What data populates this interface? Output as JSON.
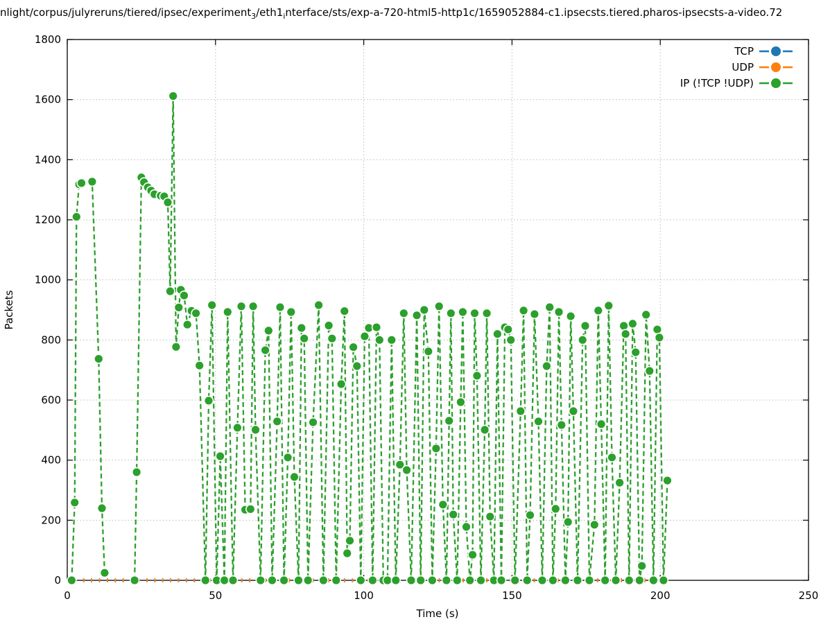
{
  "figure": {
    "title_plain": "nlight/corpus/julyreruns/tiered/ipsec/experiment₃/eth1ᵢnterface/sts/exp-a-720-html5-http1c/1659052884-c1.ipsecsts.tiered.pharos-ipsecsts-a-video.72",
    "title_segments": [
      {
        "text": "nlight/corpus/julyreruns/tiered/ipsec/experiment"
      },
      {
        "text": "3",
        "subscript": true
      },
      {
        "text": "/eth1"
      },
      {
        "text": "i",
        "subscript": true
      },
      {
        "text": "nterface/sts/exp-a-720-html5-http1c/1659052884-c1.ipsecsts.tiered.pharos-ipsecsts-a-video.72"
      }
    ]
  },
  "chart_data": {
    "type": "line",
    "title": "nlight/corpus/julyreruns/tiered/ipsec/experiment₃/eth1ᵢnterface/sts/exp-a-720-html5-http1c/1659052884-c1.ipsecsts.tiered.pharos-ipsecsts-a-video.72",
    "xlabel": "Time (s)",
    "ylabel": "Packets",
    "xlim": [
      0,
      250
    ],
    "ylim": [
      0,
      1800
    ],
    "xticks": [
      0,
      50,
      100,
      150,
      200,
      250
    ],
    "yticks": [
      0,
      200,
      400,
      600,
      800,
      1000,
      1200,
      1400,
      1600,
      1800
    ],
    "grid": true,
    "grid_style": "dotted",
    "legend_position": "top-right",
    "series": [
      {
        "name": "TCP",
        "color": "#1f77b4",
        "linestyle": "dashed",
        "marker": "circle",
        "style": "tick-dashes",
        "points": [
          [
            0,
            0
          ],
          [
            202.6,
            0
          ]
        ]
      },
      {
        "name": "UDP",
        "color": "#ff7f0e",
        "linestyle": "dashed",
        "marker": "circle",
        "style": "tick-dashes",
        "points": [
          [
            0,
            0
          ],
          [
            202.6,
            0
          ]
        ]
      },
      {
        "name": "IP (!TCP  !UDP)",
        "color": "#2ca02c",
        "linestyle": "dashed",
        "marker": "circle",
        "style": "line-markers",
        "points": [
          [
            1.5,
            0
          ],
          [
            2.5,
            259
          ],
          [
            3.1,
            1210
          ],
          [
            4.0,
            1318
          ],
          [
            4.8,
            1322
          ],
          [
            8.4,
            1327
          ],
          [
            10.6,
            737
          ],
          [
            11.7,
            240
          ],
          [
            12.6,
            25
          ],
          null,
          [
            22.7,
            0
          ],
          [
            23.4,
            360
          ],
          [
            25.0,
            1341
          ],
          [
            25.9,
            1325
          ],
          [
            27.2,
            1308
          ],
          [
            28.3,
            1297
          ],
          [
            29.4,
            1285
          ],
          [
            31.5,
            1280
          ],
          [
            32.7,
            1278
          ],
          [
            33.9,
            1258
          ],
          [
            34.7,
            962
          ],
          [
            35.7,
            1612
          ],
          [
            36.7,
            777
          ],
          [
            37.6,
            908
          ],
          [
            38.3,
            967
          ],
          [
            39.4,
            948
          ],
          [
            40.5,
            851
          ],
          [
            41.9,
            897
          ],
          [
            43.4,
            889
          ],
          [
            44.6,
            715
          ],
          [
            46.6,
            0
          ],
          [
            47.7,
            598
          ],
          [
            48.8,
            916
          ],
          [
            50.4,
            0
          ],
          [
            51.6,
            413
          ],
          [
            53.0,
            0
          ],
          [
            54.1,
            893
          ],
          [
            55.9,
            0
          ],
          [
            57.4,
            508
          ],
          [
            58.7,
            912
          ],
          [
            60.0,
            235
          ],
          [
            61.8,
            237
          ],
          [
            62.7,
            912
          ],
          [
            63.5,
            501
          ],
          [
            65.2,
            0
          ],
          [
            66.8,
            766
          ],
          [
            67.9,
            831
          ],
          [
            69.1,
            0
          ],
          [
            70.8,
            529
          ],
          [
            71.8,
            909
          ],
          [
            73.1,
            0
          ],
          [
            74.4,
            409
          ],
          [
            75.5,
            893
          ],
          [
            76.6,
            344
          ],
          [
            78.0,
            0
          ],
          [
            79.0,
            840
          ],
          [
            79.9,
            805
          ],
          [
            81.2,
            0
          ],
          [
            82.9,
            526
          ],
          [
            84.8,
            916
          ],
          [
            86.4,
            0
          ],
          [
            88.2,
            848
          ],
          [
            89.3,
            805
          ],
          [
            90.7,
            0
          ],
          [
            92.4,
            653
          ],
          [
            93.5,
            896
          ],
          [
            94.4,
            90
          ],
          [
            95.3,
            132
          ],
          [
            96.5,
            776
          ],
          [
            97.7,
            713
          ],
          [
            99.0,
            0
          ],
          [
            100.3,
            812
          ],
          [
            101.7,
            840
          ],
          [
            103.0,
            0
          ],
          [
            104.3,
            842
          ],
          [
            105.3,
            800
          ],
          [
            106.6,
            0
          ],
          [
            108.0,
            0
          ],
          [
            109.4,
            800
          ],
          [
            110.8,
            0
          ],
          [
            112.2,
            385
          ],
          [
            113.5,
            889
          ],
          [
            114.5,
            367
          ],
          [
            116.0,
            0
          ],
          [
            117.9,
            882
          ],
          [
            119.2,
            0
          ],
          [
            120.4,
            900
          ],
          [
            121.8,
            762
          ],
          [
            123.1,
            0
          ],
          [
            124.4,
            439
          ],
          [
            125.4,
            912
          ],
          [
            126.7,
            252
          ],
          [
            127.9,
            0
          ],
          [
            128.8,
            531
          ],
          [
            129.4,
            889
          ],
          [
            130.2,
            219
          ],
          [
            131.5,
            0
          ],
          [
            132.7,
            593
          ],
          [
            133.4,
            893
          ],
          [
            134.6,
            178
          ],
          [
            135.8,
            0
          ],
          [
            136.7,
            85
          ],
          [
            137.4,
            889
          ],
          [
            138.2,
            681
          ],
          [
            139.5,
            0
          ],
          [
            140.8,
            501
          ],
          [
            141.5,
            889
          ],
          [
            142.6,
            212
          ],
          [
            143.9,
            0
          ],
          [
            145.1,
            820
          ],
          [
            146.4,
            0
          ],
          [
            147.6,
            842
          ],
          [
            148.7,
            835
          ],
          [
            149.6,
            800
          ],
          [
            151.0,
            0
          ],
          [
            152.9,
            563
          ],
          [
            153.9,
            898
          ],
          [
            155.1,
            0
          ],
          [
            156.1,
            217
          ],
          [
            157.6,
            886
          ],
          [
            158.9,
            529
          ],
          [
            160.2,
            0
          ],
          [
            161.7,
            713
          ],
          [
            162.7,
            909
          ],
          [
            163.8,
            0
          ],
          [
            164.7,
            238
          ],
          [
            165.8,
            893
          ],
          [
            166.7,
            517
          ],
          [
            168.0,
            0
          ],
          [
            168.9,
            194
          ],
          [
            169.8,
            879
          ],
          [
            170.7,
            563
          ],
          [
            172.1,
            0
          ],
          [
            173.8,
            800
          ],
          [
            174.7,
            847
          ],
          [
            176.1,
            0
          ],
          [
            177.8,
            185
          ],
          [
            179.1,
            898
          ],
          [
            180.1,
            520
          ],
          [
            181.4,
            0
          ],
          [
            182.6,
            914
          ],
          [
            183.7,
            409
          ],
          [
            185.0,
            0
          ],
          [
            186.3,
            325
          ],
          [
            187.7,
            847
          ],
          [
            188.3,
            820
          ],
          [
            189.5,
            0
          ],
          [
            190.7,
            854
          ],
          [
            191.7,
            759
          ],
          [
            193.0,
            0
          ],
          [
            193.8,
            48
          ],
          [
            195.2,
            884
          ],
          [
            196.4,
            697
          ],
          [
            197.7,
            0
          ],
          [
            199.0,
            835
          ],
          [
            199.7,
            808
          ],
          [
            201.1,
            0
          ],
          [
            202.4,
            332
          ]
        ]
      }
    ]
  }
}
